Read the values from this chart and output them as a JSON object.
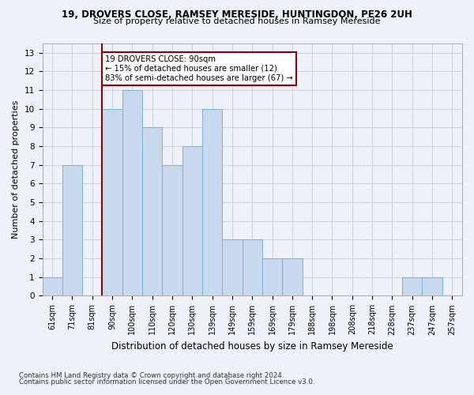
{
  "title1": "19, DROVERS CLOSE, RAMSEY MERESIDE, HUNTINGDON, PE26 2UH",
  "title2": "Size of property relative to detached houses in Ramsey Mereside",
  "xlabel": "Distribution of detached houses by size in Ramsey Mereside",
  "ylabel": "Number of detached properties",
  "bar_labels": [
    "61sqm",
    "71sqm",
    "81sqm",
    "90sqm",
    "100sqm",
    "110sqm",
    "120sqm",
    "130sqm",
    "139sqm",
    "149sqm",
    "159sqm",
    "169sqm",
    "179sqm",
    "188sqm",
    "198sqm",
    "208sqm",
    "218sqm",
    "228sqm",
    "237sqm",
    "247sqm",
    "257sqm"
  ],
  "bar_values": [
    1,
    7,
    0,
    10,
    11,
    9,
    7,
    8,
    10,
    3,
    3,
    2,
    2,
    0,
    0,
    0,
    0,
    0,
    1,
    1,
    0
  ],
  "bar_color": "#c8d9ed",
  "bar_edge_color": "#7aafd4",
  "annotation_text": "19 DROVERS CLOSE: 90sqm\n← 15% of detached houses are smaller (12)\n83% of semi-detached houses are larger (67) →",
  "annotation_box_color": "white",
  "annotation_box_edge_color": "#8b0000",
  "vline_color": "#8b0000",
  "vline_x_index": 3,
  "ylim": [
    0,
    13.5
  ],
  "yticks": [
    0,
    1,
    2,
    3,
    4,
    5,
    6,
    7,
    8,
    9,
    10,
    11,
    12,
    13
  ],
  "grid_color": "#c8d0dc",
  "footnote1": "Contains HM Land Registry data © Crown copyright and database right 2024.",
  "footnote2": "Contains public sector information licensed under the Open Government Licence v3.0.",
  "bg_color": "#eef2f8"
}
